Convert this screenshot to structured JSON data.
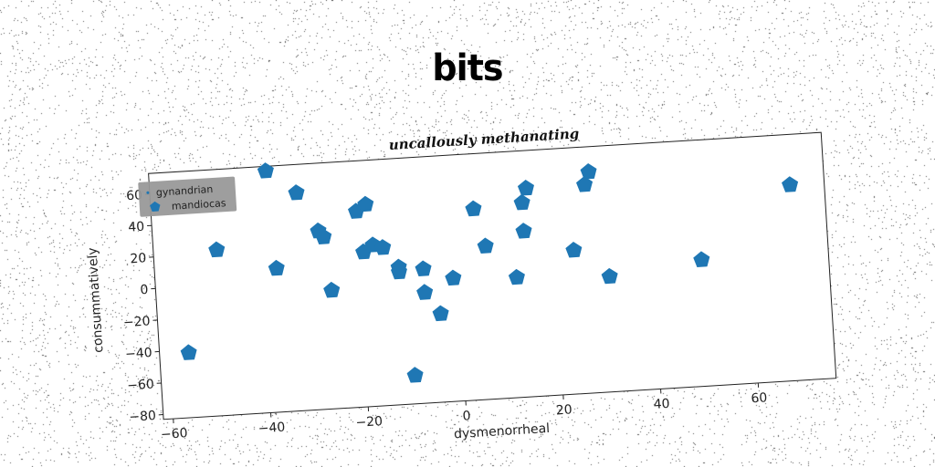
{
  "page_title": "bits",
  "chart_data": {
    "type": "scatter",
    "title": "uncallously methanating",
    "xlabel": "dysmenorrheal",
    "ylabel": "consummatively",
    "xlim": [
      -62,
      76
    ],
    "ylim": [
      -83,
      73
    ],
    "xticks": [
      -60,
      -40,
      -20,
      0,
      20,
      40,
      60
    ],
    "yticks": [
      -80,
      -60,
      -40,
      -20,
      0,
      20,
      40,
      60
    ],
    "grid": false,
    "legend_position": "top-left",
    "legend": [
      "gynandrian",
      "mandiocas"
    ],
    "series": [
      {
        "name": "gynandrian",
        "marker": "point",
        "color": "#1f77b4",
        "points": []
      },
      {
        "name": "mandiocas",
        "marker": "pentagon",
        "color": "#1f77b4",
        "points": [
          [
            -56,
            -42
          ],
          [
            -49,
            22
          ],
          [
            -38,
            70
          ],
          [
            -37,
            8
          ],
          [
            -32,
            55
          ],
          [
            -28,
            30
          ],
          [
            -27,
            26
          ],
          [
            -26,
            -8
          ],
          [
            -20,
            41
          ],
          [
            -19,
            15
          ],
          [
            -18,
            45
          ],
          [
            -17,
            19
          ],
          [
            -15,
            17
          ],
          [
            -12,
            4
          ],
          [
            -12,
            1
          ],
          [
            -7,
            2
          ],
          [
            -7,
            -13
          ],
          [
            -10,
            -65
          ],
          [
            -4,
            -27
          ],
          [
            -1,
            -5
          ],
          [
            4,
            38
          ],
          [
            6,
            14
          ],
          [
            12,
            -7
          ],
          [
            14,
            40
          ],
          [
            14,
            22
          ],
          [
            15,
            49
          ],
          [
            24,
            8
          ],
          [
            27,
            49
          ],
          [
            28,
            57
          ],
          [
            31,
            -10
          ],
          [
            50,
            -3
          ],
          [
            69,
            41
          ]
        ]
      }
    ]
  },
  "colors": {
    "marker": "#1f77b4",
    "legend_bg": "#999999"
  }
}
